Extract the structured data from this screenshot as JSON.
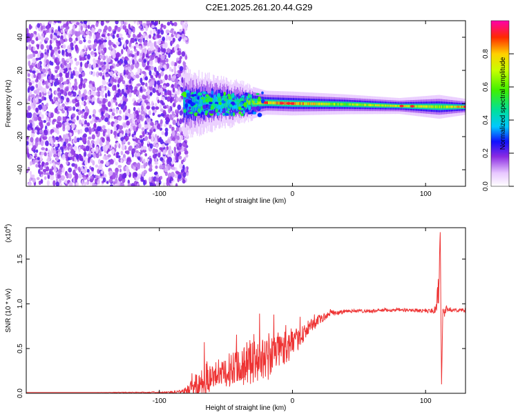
{
  "title": "C2E1.2025.261.20.44.G29",
  "chart_data": [
    {
      "type": "heatmap",
      "xlabel": "Height of straight line (km)",
      "ylabel": "Frequency (Hz)",
      "xlim": [
        -200,
        130
      ],
      "ylim": [
        -50,
        50
      ],
      "xticks": [
        -100,
        0,
        100
      ],
      "yticks": [
        -40,
        -20,
        0,
        20,
        40
      ],
      "colorbar": {
        "label": "Normalized spectral amplitude",
        "range": [
          0,
          1
        ],
        "ticks": [
          "0.0",
          "0.2",
          "0.4",
          "0.6",
          "0.8"
        ],
        "tick_values": [
          0,
          0.2,
          0.4,
          0.6,
          0.8
        ]
      },
      "noise_region_x": [
        -200,
        -82
      ],
      "signal_band": [
        {
          "x": -82,
          "center_hz": 0,
          "half_width_hz": 8,
          "peak_amp": 0.45
        },
        {
          "x": -40,
          "center_hz": 0.5,
          "half_width_hz": 5,
          "peak_amp": 0.55
        },
        {
          "x": -20,
          "center_hz": 0.5,
          "half_width_hz": 3,
          "peak_amp": 0.9
        },
        {
          "x": 0,
          "center_hz": 0,
          "half_width_hz": 3,
          "peak_amp": 0.95
        },
        {
          "x": 40,
          "center_hz": -0.5,
          "half_width_hz": 2.5,
          "peak_amp": 0.7
        },
        {
          "x": 80,
          "center_hz": -1.5,
          "half_width_hz": 2,
          "peak_amp": 0.85
        },
        {
          "x": 110,
          "center_hz": -2,
          "half_width_hz": 3,
          "peak_amp": 0.75
        },
        {
          "x": 130,
          "center_hz": -2,
          "half_width_hz": 2,
          "peak_amp": 0.9
        }
      ]
    },
    {
      "type": "line",
      "ylabel": "SNR (10 * v/v)",
      "y_multiplier": "(x10",
      "y_multiplier_exp": "4",
      "xlabel": "Height of straight line (km)",
      "xlim": [
        -200,
        130
      ],
      "ylim": [
        0,
        1.85
      ],
      "xticks": [
        -100,
        0,
        100
      ],
      "yticks": [
        0.0,
        0.5,
        1.0,
        1.5
      ],
      "ytick_labels": [
        "0.0",
        "0.5",
        "1.0",
        "1.5"
      ],
      "series": [
        {
          "name": "SNR",
          "color": "#ee3333",
          "x": [
            -200,
            -150,
            -90,
            -80,
            -75,
            -70,
            -65,
            -60,
            -55,
            -50,
            -45,
            -40,
            -35,
            -30,
            -25,
            -20,
            -15,
            -10,
            -5,
            0,
            5,
            10,
            15,
            20,
            25,
            30,
            35,
            40,
            50,
            60,
            70,
            80,
            90,
            100,
            105,
            108,
            110,
            111,
            112,
            113,
            115,
            120,
            130
          ],
          "y": [
            0.01,
            0.01,
            0.01,
            0.02,
            0.06,
            0.1,
            0.16,
            0.2,
            0.18,
            0.22,
            0.3,
            0.34,
            0.3,
            0.34,
            0.38,
            0.36,
            0.42,
            0.5,
            0.52,
            0.55,
            0.62,
            0.7,
            0.76,
            0.82,
            0.86,
            0.9,
            0.9,
            0.92,
            0.92,
            0.92,
            0.93,
            0.93,
            0.93,
            0.92,
            0.92,
            0.95,
            1.2,
            1.8,
            0.1,
            0.9,
            0.94,
            0.93,
            0.93
          ],
          "noise_amp": [
            0.0,
            0.0,
            0.01,
            0.05,
            0.1,
            0.18,
            0.22,
            0.12,
            0.14,
            0.18,
            0.2,
            0.2,
            0.24,
            0.26,
            0.24,
            0.26,
            0.22,
            0.2,
            0.2,
            0.14,
            0.12,
            0.1,
            0.08,
            0.05,
            0.04,
            0.03,
            0.03,
            0.02,
            0.02,
            0.02,
            0.02,
            0.02,
            0.02,
            0.02,
            0.03,
            0.05,
            0.2,
            0.0,
            0.0,
            0.1,
            0.05,
            0.02,
            0.02
          ]
        }
      ]
    }
  ]
}
